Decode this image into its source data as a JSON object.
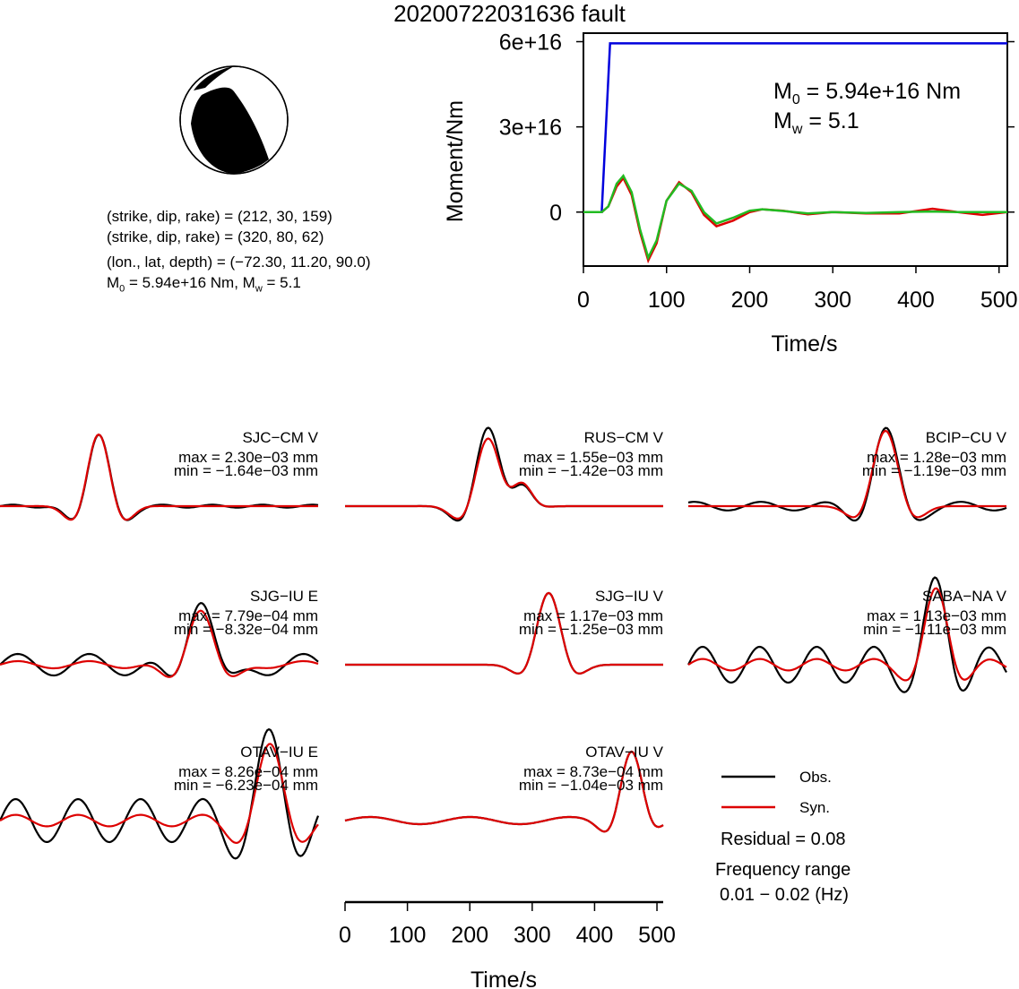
{
  "title": "20200722031636 fault",
  "mechanism": {
    "line1": "(strike, dip, rake) = (212, 30, 159)",
    "line2": "(strike, dip, rake) = (320, 80, 62)",
    "line3": "(lon., lat, depth) = (−72.30, 11.20, 90.0)",
    "m0_label": "M",
    "m0_sub": "0",
    "m0_value": " = 5.94e+16 Nm, M",
    "mw_sub": "w",
    "mw_value": " = 5.1"
  },
  "legend": {
    "obs": "Obs.",
    "syn": "Syn.",
    "residual": "Residual = 0.08",
    "freq_label": "Frequency range",
    "freq_value": "0.01 − 0.02 (Hz)",
    "obs_color": "#000000",
    "syn_color": "#dd0000"
  },
  "chart_data": [
    {
      "type": "line",
      "name": "moment",
      "xlabel": "Time/s",
      "ylabel": "Moment/Nm",
      "xlim": [
        0,
        510
      ],
      "ylim": [
        -1.9e+16,
        6.3e+16
      ],
      "xticks": [
        "0",
        "100",
        "200",
        "300",
        "400",
        "500"
      ],
      "yticks": [
        "0",
        "3e+16",
        "6e+16"
      ],
      "annotation_m0": "M",
      "annotation_m0_sub": "0",
      "annotation_m0_value": " = 5.94e+16 Nm",
      "annotation_mw": "M",
      "annotation_mw_sub": "w",
      "annotation_mw_value": " = 5.1",
      "series": [
        {
          "color": "#0000dd",
          "x": [
            0,
            22,
            32,
            510
          ],
          "y": [
            0,
            0,
            5.94e+16,
            5.94e+16
          ]
        },
        {
          "color": "#dd0000",
          "x": [
            0,
            22,
            30,
            40,
            48,
            58,
            68,
            78,
            88,
            100,
            115,
            130,
            145,
            160,
            180,
            200,
            215,
            240,
            270,
            300,
            340,
            380,
            420,
            450,
            480,
            510
          ],
          "y": [
            0,
            0,
            2000000000000000.0,
            9000000000000000.0,
            1.2e+16,
            6000000000000000.0,
            -7000000000000000.0,
            -1.7e+16,
            -1.1e+16,
            4000000000000000.0,
            1.05e+16,
            7000000000000000.0,
            -1000000000000000.0,
            -5000000000000000.0,
            -3000000000000000.0,
            0.0,
            1000000000000000.0,
            500000000000000.0,
            -800000000000000.0,
            0.0,
            -500000000000000.0,
            -500000000000000.0,
            1200000000000000.0,
            0.0,
            -1000000000000000.0,
            0.0
          ]
        },
        {
          "color": "#22bb22",
          "x": [
            0,
            22,
            30,
            40,
            48,
            58,
            68,
            78,
            88,
            100,
            115,
            130,
            145,
            160,
            180,
            200,
            215,
            240,
            270,
            300,
            340,
            380,
            420,
            450,
            480,
            510
          ],
          "y": [
            0,
            0,
            2000000000000000.0,
            1e+16,
            1.28e+16,
            7000000000000000.0,
            -6000000000000000.0,
            -1.6e+16,
            -1e+16,
            4000000000000000.0,
            1e+16,
            7500000000000000.0,
            0.0,
            -4000000000000000.0,
            -2000000000000000.0,
            500000000000000.0,
            1000000000000000.0,
            400000000000000.0,
            -500000000000000.0,
            0.0,
            -300000000000000.0,
            0.0,
            200000000000000.0,
            0.0,
            0.0,
            0.0
          ]
        }
      ]
    },
    {
      "type": "line",
      "name": "waveforms",
      "xlabel": "Time/s",
      "xlim": [
        0,
        510
      ],
      "xticks": [
        "0",
        "100",
        "200",
        "300",
        "400",
        "500"
      ],
      "stations": [
        {
          "name": "SJC−CM V",
          "max": "max = 2.30e−03 mm",
          "min": "min = −1.64e−03 mm",
          "col": 0,
          "row": 0
        },
        {
          "name": "RUS−CM V",
          "max": "max = 1.55e−03 mm",
          "min": "min = −1.42e−03 mm",
          "col": 1,
          "row": 0
        },
        {
          "name": "BCIP−CU V",
          "max": "max = 1.28e−03 mm",
          "min": "min = −1.19e−03 mm",
          "col": 2,
          "row": 0
        },
        {
          "name": "SJG−IU E",
          "max": "max = 7.79e−04 mm",
          "min": "min = −8.32e−04 mm",
          "col": 0,
          "row": 1
        },
        {
          "name": "SJG−IU V",
          "max": "max = 1.17e−03 mm",
          "min": "min = −1.25e−03 mm",
          "col": 1,
          "row": 1
        },
        {
          "name": "SABA−NA V",
          "max": "max = 1.13e−03 mm",
          "min": "min = −1.11e−03 mm",
          "col": 2,
          "row": 1
        },
        {
          "name": "OTAV−IU E",
          "max": "max = 8.26e−04 mm",
          "min": "min = −6.23e−04 mm",
          "col": 0,
          "row": 2
        },
        {
          "name": "OTAV−IU V",
          "max": "max = 8.73e−04 mm",
          "min": "min = −1.04e−03 mm",
          "col": 1,
          "row": 2
        }
      ]
    }
  ]
}
